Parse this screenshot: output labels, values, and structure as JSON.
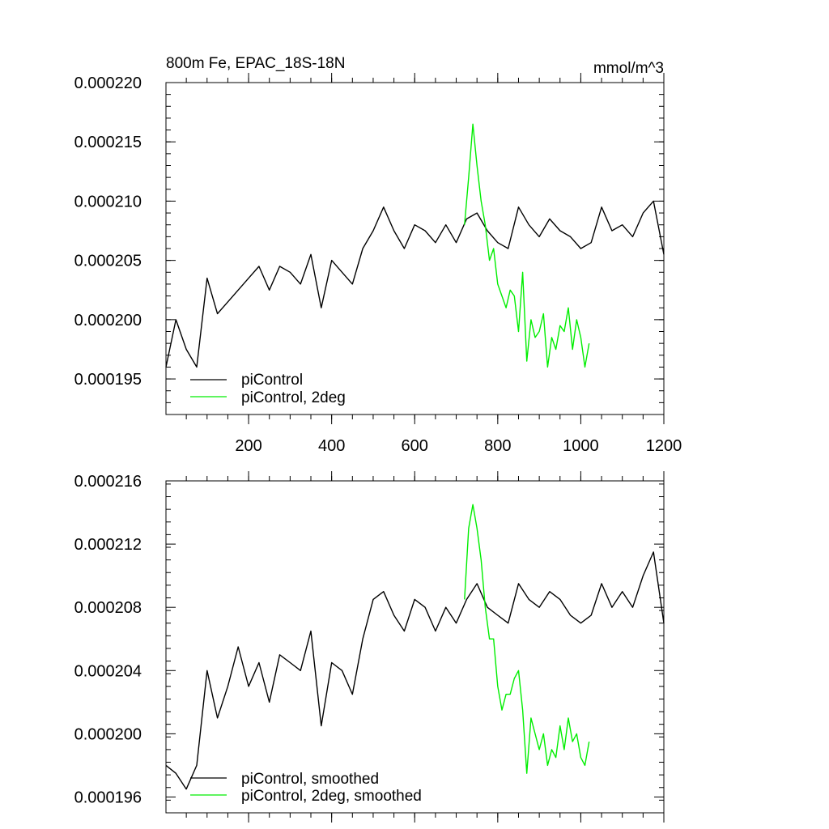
{
  "chart_data": [
    {
      "type": "line",
      "title": "800m Fe, EPAC_18S-18N",
      "units": "mmol/m^3",
      "xlim": [
        1,
        1200
      ],
      "ylim": [
        0.000192,
        0.00022
      ],
      "xticks": [
        200,
        400,
        600,
        800,
        1000,
        1200
      ],
      "xtick_labels": [
        "200",
        "400",
        "600",
        "800",
        "1000",
        "1200"
      ],
      "yticks": [
        0.000195,
        0.0002,
        0.000205,
        0.00021,
        0.000215,
        0.00022
      ],
      "ytick_labels": [
        "0.000195",
        "0.000200",
        "0.000205",
        "0.000210",
        "0.000215",
        "0.000220"
      ],
      "legend_position": "bottom-left",
      "series": [
        {
          "name": "piControl",
          "color": "#000000",
          "x": [
            1,
            25,
            50,
            75,
            100,
            125,
            150,
            175,
            200,
            225,
            250,
            275,
            300,
            325,
            350,
            375,
            400,
            425,
            450,
            475,
            500,
            525,
            550,
            575,
            600,
            625,
            650,
            675,
            700,
            725,
            750,
            775,
            800,
            825,
            850,
            875,
            900,
            925,
            950,
            975,
            1000,
            1025,
            1050,
            1075,
            1100,
            1125,
            1150,
            1175,
            1200
          ],
          "y": [
            0.000196,
            0.0002,
            0.0001975,
            0.000196,
            0.0002035,
            0.0002005,
            0.0002015,
            0.0002025,
            0.0002035,
            0.0002045,
            0.0002025,
            0.0002045,
            0.000204,
            0.000203,
            0.0002055,
            0.000201,
            0.000205,
            0.000204,
            0.000203,
            0.000206,
            0.0002075,
            0.0002095,
            0.0002075,
            0.000206,
            0.000208,
            0.0002075,
            0.0002065,
            0.000208,
            0.0002065,
            0.0002085,
            0.000209,
            0.0002075,
            0.0002065,
            0.000206,
            0.0002095,
            0.000208,
            0.000207,
            0.0002085,
            0.0002075,
            0.000207,
            0.000206,
            0.0002065,
            0.0002095,
            0.0002075,
            0.000208,
            0.000207,
            0.000209,
            0.00021,
            0.0002055
          ]
        },
        {
          "name": "piControl, 2deg",
          "color": "#00ee00",
          "x": [
            720,
            730,
            740,
            750,
            760,
            770,
            780,
            790,
            800,
            810,
            820,
            830,
            840,
            850,
            860,
            870,
            880,
            890,
            900,
            910,
            920,
            930,
            940,
            950,
            960,
            970,
            980,
            990,
            1000,
            1010,
            1020
          ],
          "y": [
            0.000208,
            0.000212,
            0.0002165,
            0.000213,
            0.00021,
            0.000208,
            0.000205,
            0.000206,
            0.000203,
            0.000202,
            0.000201,
            0.0002025,
            0.000202,
            0.000199,
            0.000204,
            0.0001965,
            0.0002,
            0.0001985,
            0.000199,
            0.0002005,
            0.000196,
            0.0001985,
            0.0001975,
            0.0001995,
            0.000199,
            0.000201,
            0.0001975,
            0.0002,
            0.0001985,
            0.000196,
            0.000198
          ]
        }
      ]
    },
    {
      "type": "line",
      "title": "",
      "xlim": [
        1,
        1200
      ],
      "ylim": [
        0.000195,
        0.000216
      ],
      "yticks": [
        0.000196,
        0.0002,
        0.000204,
        0.000208,
        0.000212,
        0.000216
      ],
      "ytick_labels": [
        "0.000196",
        "0.000200",
        "0.000204",
        "0.000208",
        "0.000212",
        "0.000216"
      ],
      "legend_position": "bottom-left",
      "series": [
        {
          "name": "piControl, smoothed",
          "color": "#000000",
          "x": [
            1,
            25,
            50,
            75,
            100,
            125,
            150,
            175,
            200,
            225,
            250,
            275,
            300,
            325,
            350,
            375,
            400,
            425,
            450,
            475,
            500,
            525,
            550,
            575,
            600,
            625,
            650,
            675,
            700,
            725,
            750,
            775,
            800,
            825,
            850,
            875,
            900,
            925,
            950,
            975,
            1000,
            1025,
            1050,
            1075,
            1100,
            1125,
            1150,
            1175,
            1200
          ],
          "y": [
            0.000198,
            0.0001975,
            0.0001965,
            0.000198,
            0.000204,
            0.000201,
            0.000203,
            0.0002055,
            0.000203,
            0.0002045,
            0.000202,
            0.000205,
            0.0002045,
            0.000204,
            0.0002065,
            0.0002005,
            0.0002045,
            0.000204,
            0.0002025,
            0.000206,
            0.0002085,
            0.000209,
            0.0002075,
            0.0002065,
            0.0002085,
            0.000208,
            0.0002065,
            0.000208,
            0.000207,
            0.0002085,
            0.0002095,
            0.000208,
            0.0002075,
            0.000207,
            0.0002095,
            0.0002085,
            0.000208,
            0.000209,
            0.0002085,
            0.0002075,
            0.000207,
            0.0002075,
            0.0002095,
            0.000208,
            0.000209,
            0.000208,
            0.00021,
            0.0002115,
            0.000207
          ]
        },
        {
          "name": "piControl, 2deg, smoothed",
          "color": "#00ee00",
          "x": [
            720,
            730,
            740,
            750,
            760,
            770,
            780,
            790,
            800,
            810,
            820,
            830,
            840,
            850,
            860,
            870,
            880,
            890,
            900,
            910,
            920,
            930,
            940,
            950,
            960,
            970,
            980,
            990,
            1000,
            1010,
            1020
          ],
          "y": [
            0.0002085,
            0.000213,
            0.0002145,
            0.000213,
            0.000211,
            0.000208,
            0.000206,
            0.000206,
            0.000203,
            0.0002015,
            0.0002025,
            0.0002025,
            0.0002035,
            0.000204,
            0.0002015,
            0.0001975,
            0.000201,
            0.0002,
            0.000199,
            0.0002,
            0.000198,
            0.000199,
            0.0001985,
            0.0002005,
            0.000199,
            0.000201,
            0.0001995,
            0.0002,
            0.0001985,
            0.000198,
            0.0001995
          ]
        }
      ]
    }
  ]
}
